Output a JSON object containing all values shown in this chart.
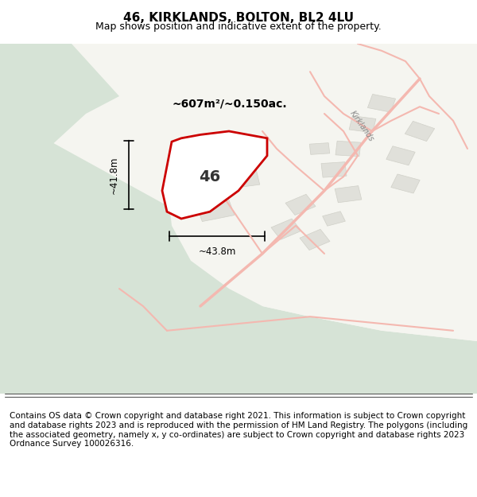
{
  "title": "46, KIRKLANDS, BOLTON, BL2 4LU",
  "subtitle": "Map shows position and indicative extent of the property.",
  "footer": "Contains OS data © Crown copyright and database right 2021. This information is subject to Crown copyright and database rights 2023 and is reproduced with the permission of HM Land Registry. The polygons (including the associated geometry, namely x, y co-ordinates) are subject to Crown copyright and database rights 2023 Ordnance Survey 100026316.",
  "area_label": "~607m²/~0.150ac.",
  "width_label": "~43.8m",
  "height_label": "~41.8m",
  "property_number": "46",
  "bg_green": "#d6e3d6",
  "bg_white": "#f5f5f0",
  "road_color": "#f4b8b0",
  "road_color2": "#e8a09a",
  "building_color": "#e0e0da",
  "building_edge": "#d0d0c8",
  "property_fill": "#ffffff",
  "property_edge": "#cc0000",
  "title_fontsize": 11,
  "subtitle_fontsize": 9,
  "footer_fontsize": 7.5
}
